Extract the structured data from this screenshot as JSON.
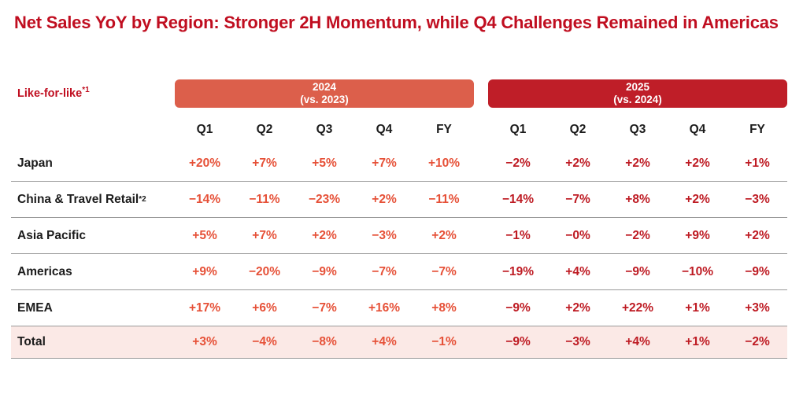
{
  "slide": {
    "title": "Net Sales YoY by Region: Stronger 2H Momentum, while Q4 Challenges Remained in Americas"
  },
  "table": {
    "measure_label": "Like-for-like",
    "measure_superscript": "*1",
    "period_bands": [
      {
        "year": "2024",
        "comparison": "(vs. 2023)"
      },
      {
        "year": "2025",
        "comparison": "(vs. 2024)"
      }
    ],
    "quarter_headers": [
      "Q1",
      "Q2",
      "Q3",
      "Q4",
      "FY"
    ],
    "rows": [
      {
        "label": "Japan",
        "superscript": "",
        "is_total": false,
        "y2024": [
          "+20%",
          "+7%",
          "+5%",
          "+7%",
          "+10%"
        ],
        "y2025": [
          "−2%",
          "+2%",
          "+2%",
          "+2%",
          "+1%"
        ]
      },
      {
        "label": "China & Travel Retail",
        "superscript": "*2",
        "is_total": false,
        "y2024": [
          "−14%",
          "−11%",
          "−23%",
          "+2%",
          "−11%"
        ],
        "y2025": [
          "−14%",
          "−7%",
          "+8%",
          "+2%",
          "−3%"
        ]
      },
      {
        "label": "Asia Pacific",
        "superscript": "",
        "is_total": false,
        "y2024": [
          "+5%",
          "+7%",
          "+2%",
          "−3%",
          "+2%"
        ],
        "y2025": [
          "−1%",
          "−0%",
          "−2%",
          "+9%",
          "+2%"
        ]
      },
      {
        "label": "Americas",
        "superscript": "",
        "is_total": false,
        "y2024": [
          "+9%",
          "−20%",
          "−9%",
          "−7%",
          "−7%"
        ],
        "y2025": [
          "−19%",
          "+4%",
          "−9%",
          "−10%",
          "−9%"
        ]
      },
      {
        "label": "EMEA",
        "superscript": "",
        "is_total": false,
        "y2024": [
          "+17%",
          "+6%",
          "−7%",
          "+16%",
          "+8%"
        ],
        "y2025": [
          "−9%",
          "+2%",
          "+22%",
          "+1%",
          "+3%"
        ]
      },
      {
        "label": "Total",
        "superscript": "",
        "is_total": true,
        "y2024": [
          "+3%",
          "−4%",
          "−8%",
          "+4%",
          "−1%"
        ],
        "y2025": [
          "−9%",
          "−3%",
          "+4%",
          "+1%",
          "−2%"
        ]
      }
    ]
  },
  "colors": {
    "title_red": "#C00E20",
    "band_2024": "#DC5F4B",
    "band_2025": "#BF1E28",
    "value_2024": "#E65138",
    "value_2025": "#BE1B23",
    "total_row_bg": "#FBE9E6",
    "divider": "#999999",
    "text_dark": "#1C1C1C"
  },
  "chart_data": {
    "type": "table",
    "title": "Net Sales YoY by Region: Stronger 2H Momentum, while Q4 Challenges Remained in Americas",
    "measure": "Like-for-like net sales YoY (%)",
    "column_groups": [
      "2024 (vs. 2023)",
      "2025 (vs. 2024)"
    ],
    "columns": [
      "Q1",
      "Q2",
      "Q3",
      "Q4",
      "FY"
    ],
    "rows": [
      {
        "name": "Japan",
        "2024": [
          20,
          7,
          5,
          7,
          10
        ],
        "2025": [
          -2,
          2,
          2,
          2,
          1
        ]
      },
      {
        "name": "China & Travel Retail",
        "2024": [
          -14,
          -11,
          -23,
          2,
          -11
        ],
        "2025": [
          -14,
          -7,
          8,
          2,
          -3
        ]
      },
      {
        "name": "Asia Pacific",
        "2024": [
          5,
          7,
          2,
          -3,
          2
        ],
        "2025": [
          -1,
          0,
          -2,
          9,
          2
        ]
      },
      {
        "name": "Americas",
        "2024": [
          9,
          -20,
          -9,
          -7,
          -7
        ],
        "2025": [
          -19,
          4,
          -9,
          -10,
          -9
        ]
      },
      {
        "name": "EMEA",
        "2024": [
          17,
          6,
          -7,
          16,
          8
        ],
        "2025": [
          -9,
          2,
          22,
          1,
          3
        ]
      },
      {
        "name": "Total",
        "2024": [
          3,
          -4,
          -8,
          4,
          -1
        ],
        "2025": [
          -9,
          -3,
          4,
          1,
          -2
        ]
      }
    ]
  }
}
